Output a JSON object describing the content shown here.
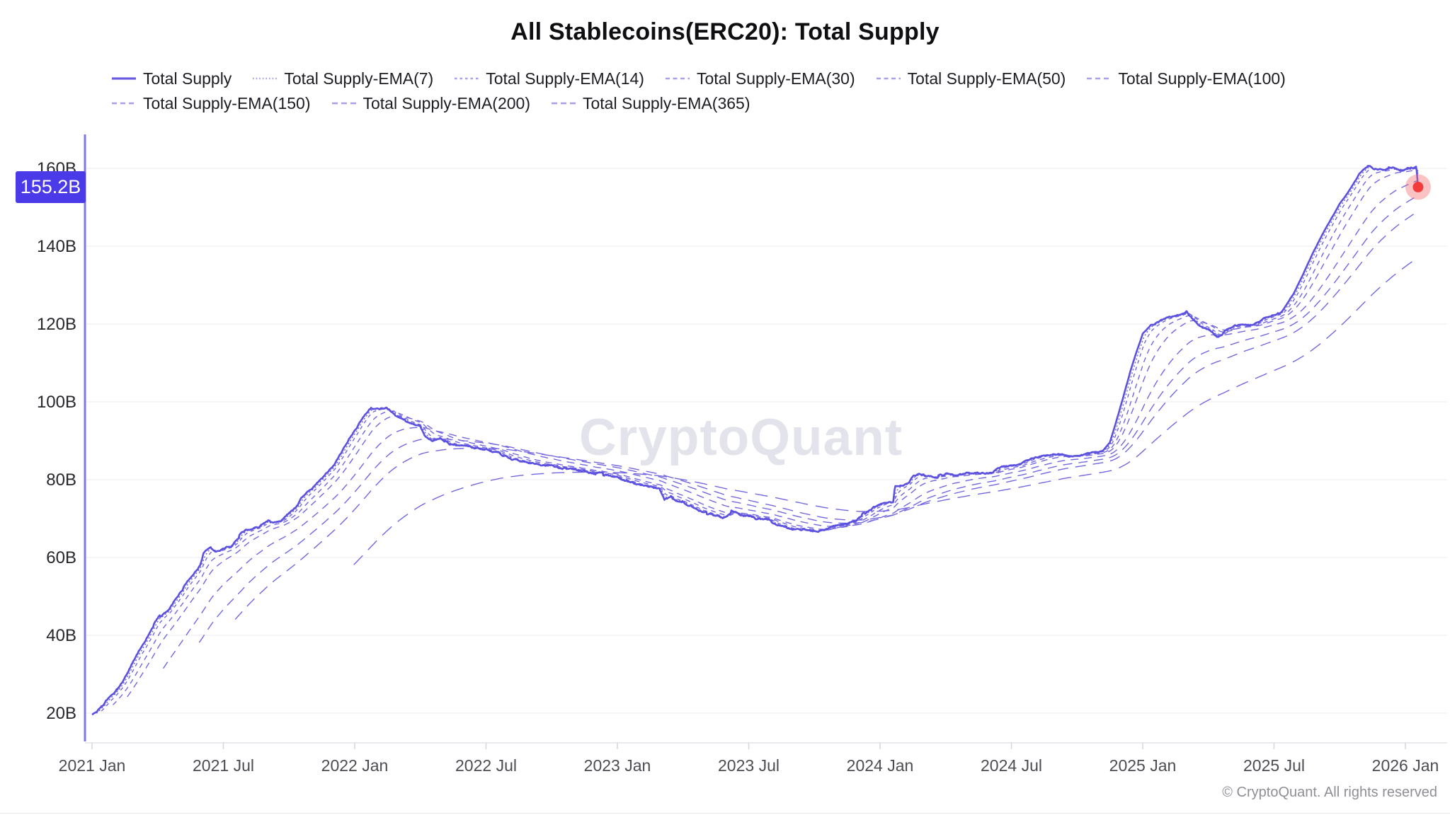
{
  "watermark": "CryptoQuant",
  "copyright": "© CryptoQuant. All rights reserved",
  "colors": {
    "main_line": "#5B50DF",
    "ema_line": "#7367DF",
    "legend_main_swatch": "#6A5CE0",
    "legend_ema_swatch": "#A8A0E8",
    "y_axis_line": "#8177E8",
    "x_axis_line": "#e4e4e8",
    "gridline": "#f1f1f4",
    "tick_mark": "#d6d6db",
    "y_label": "#26262b",
    "x_label": "#4c4c53",
    "badge_bg": "#4B3AE8",
    "badge_text": "#ffffff",
    "dot": "#F23B3B",
    "dot_halo": "rgba(244,110,110,0.42)",
    "watermark_text": "#E3E3EC"
  },
  "chart_data": {
    "type": "line",
    "title": "All Stablecoins(ERC20): Total Supply",
    "xlabel": "",
    "ylabel": "",
    "y_unit": "B",
    "grid": "horizontal",
    "legend_position": "top",
    "y_ticks": [
      {
        "label": "20B",
        "value": 20
      },
      {
        "label": "40B",
        "value": 40
      },
      {
        "label": "60B",
        "value": 60
      },
      {
        "label": "80B",
        "value": 80
      },
      {
        "label": "100B",
        "value": 100
      },
      {
        "label": "120B",
        "value": 120
      },
      {
        "label": "140B",
        "value": 140
      },
      {
        "label": "160B",
        "value": 160
      }
    ],
    "x_ticks": [
      {
        "label": "2021 Jan",
        "t": 0
      },
      {
        "label": "2021 Jul",
        "t": 6
      },
      {
        "label": "2022 Jan",
        "t": 12
      },
      {
        "label": "2022 Jul",
        "t": 18
      },
      {
        "label": "2023 Jan",
        "t": 24
      },
      {
        "label": "2023 Jul",
        "t": 30
      },
      {
        "label": "2024 Jan",
        "t": 36
      },
      {
        "label": "2024 Jul",
        "t": 42
      },
      {
        "label": "2025 Jan",
        "t": 48
      },
      {
        "label": "2025 Jul",
        "t": 54
      },
      {
        "label": "2026 Jan",
        "t": 60
      }
    ],
    "series": [
      {
        "name": "Total Supply",
        "period": 0,
        "dash": "",
        "legend_dash": "",
        "width": 2.6,
        "color": "#5B50DF",
        "legend_color": "#6A5CE0",
        "legend_width": 3.2
      },
      {
        "name": "Total Supply-EMA(7)",
        "period": 7,
        "dash": "2 3.2",
        "legend_dash": "1.6 3",
        "width": 1.5,
        "color": "#7367DF",
        "legend_color": "#A8A0E8",
        "legend_width": 2.4
      },
      {
        "name": "Total Supply-EMA(14)",
        "period": 14,
        "dash": "5 5",
        "legend_dash": "3.5 4",
        "width": 1.4,
        "color": "#7367DF",
        "legend_color": "#A8A0E8",
        "legend_width": 2.4
      },
      {
        "name": "Total Supply-EMA(30)",
        "period": 30,
        "dash": "7 6",
        "legend_dash": "6 4.5",
        "width": 1.4,
        "color": "#7367DF",
        "legend_color": "#A8A0E8",
        "legend_width": 2.4
      },
      {
        "name": "Total Supply-EMA(50)",
        "period": 50,
        "dash": "9 7",
        "legend_dash": "6 4.5",
        "width": 1.4,
        "color": "#7367DF",
        "legend_color": "#A8A0E8",
        "legend_width": 2.4
      },
      {
        "name": "Total Supply-EMA(100)",
        "period": 100,
        "dash": "11 8",
        "legend_dash": "7 5",
        "width": 1.4,
        "color": "#7367DF",
        "legend_color": "#A8A0E8",
        "legend_width": 2.4
      },
      {
        "name": "Total Supply-EMA(150)",
        "period": 150,
        "dash": "13 9",
        "legend_dash": "7 5",
        "width": 1.4,
        "color": "#7367DF",
        "legend_color": "#A8A0E8",
        "legend_width": 2.4
      },
      {
        "name": "Total Supply-EMA(200)",
        "period": 200,
        "dash": "15 10",
        "legend_dash": "8 5",
        "width": 1.4,
        "color": "#7367DF",
        "legend_color": "#A8A0E8",
        "legend_width": 2.4
      },
      {
        "name": "Total Supply-EMA(365)",
        "period": 365,
        "dash": "18 11",
        "legend_dash": "8 5",
        "width": 1.4,
        "color": "#7367DF",
        "legend_color": "#A8A0E8",
        "legend_width": 2.4
      }
    ],
    "total_supply_anchor_points": {
      "t_months_from_2021_jan": [
        0,
        0.5,
        1,
        1.5,
        2,
        2.5,
        3,
        3.5,
        4,
        4.5,
        4.95,
        5.1,
        5.4,
        5.7,
        6,
        6.35,
        6.55,
        7,
        7.6,
        8.05,
        8.6,
        9,
        9.4,
        9.55,
        10,
        10.3,
        11,
        11.5,
        12,
        12.4,
        12.7,
        13.1,
        13.45,
        14,
        14.6,
        15,
        15.2,
        15.55,
        15.9,
        16.3,
        17,
        18,
        18.6,
        19,
        20,
        21,
        22,
        23,
        24,
        24.5,
        25,
        25.5,
        25.9,
        26.15,
        26.45,
        27,
        27.5,
        28,
        28.8,
        29.2,
        29.6,
        30,
        30.5,
        31,
        31.5,
        32,
        32.5,
        33.1,
        33.5,
        34.1,
        34.8,
        35.1,
        35.7,
        36.3,
        36.6,
        36.68,
        37.3,
        37.5,
        37.8,
        38.5,
        39,
        39.5,
        40,
        40.65,
        41.4,
        42.15,
        43.1,
        44,
        45,
        45.8,
        46.2,
        46.5,
        46.8,
        47.1,
        47.4,
        47.7,
        48,
        48.4,
        49,
        49.6,
        50,
        50.6,
        51,
        51.45,
        51.8,
        52.2,
        53,
        53.6,
        54,
        54.35,
        54.9,
        55.3,
        55.7,
        56.2,
        56.6,
        57,
        57.5,
        57.9,
        58.3,
        58.7,
        59,
        59.4,
        59.8,
        60.1,
        60.35,
        60.5,
        60.58
      ],
      "value_billions": [
        19.5,
        22,
        25,
        29.5,
        35,
        40,
        44,
        47,
        52,
        56,
        59,
        62,
        63.5,
        62.5,
        63.5,
        64,
        65.5,
        67,
        67.5,
        69,
        69.5,
        71.5,
        74,
        75.5,
        78,
        80,
        84,
        88,
        93,
        96.5,
        98.8,
        98.4,
        98.8,
        95.5,
        94,
        93.5,
        90.8,
        90,
        91.5,
        89,
        87.8,
        87,
        86,
        85.3,
        84.3,
        83.4,
        82.4,
        81.4,
        80.5,
        79.5,
        79,
        78.3,
        77.8,
        74.8,
        75.6,
        74,
        72.5,
        71.5,
        70.8,
        71.8,
        70.5,
        70.5,
        69.5,
        68.8,
        68.3,
        67.6,
        67,
        66,
        66.6,
        67.4,
        69.3,
        70.5,
        72.7,
        74,
        74.2,
        78.2,
        79.3,
        81.1,
        81.8,
        81,
        81.5,
        80.8,
        81.3,
        81.8,
        82.7,
        83.6,
        85.1,
        85.8,
        86.3,
        86.8,
        87.5,
        89.5,
        95,
        101,
        107,
        112.5,
        117.3,
        119.6,
        121,
        122,
        122.4,
        119.2,
        118.5,
        116.8,
        118.8,
        120.2,
        119.8,
        120.9,
        121.8,
        123,
        127.8,
        132.5,
        137.5,
        143,
        147,
        151,
        155,
        158.8,
        160.8,
        160,
        159.6,
        160.4,
        159.8,
        160.6,
        160,
        160.5,
        155.2
      ]
    },
    "last_point": {
      "t": 60.58,
      "value": 155.2,
      "label": "155.2B"
    }
  }
}
